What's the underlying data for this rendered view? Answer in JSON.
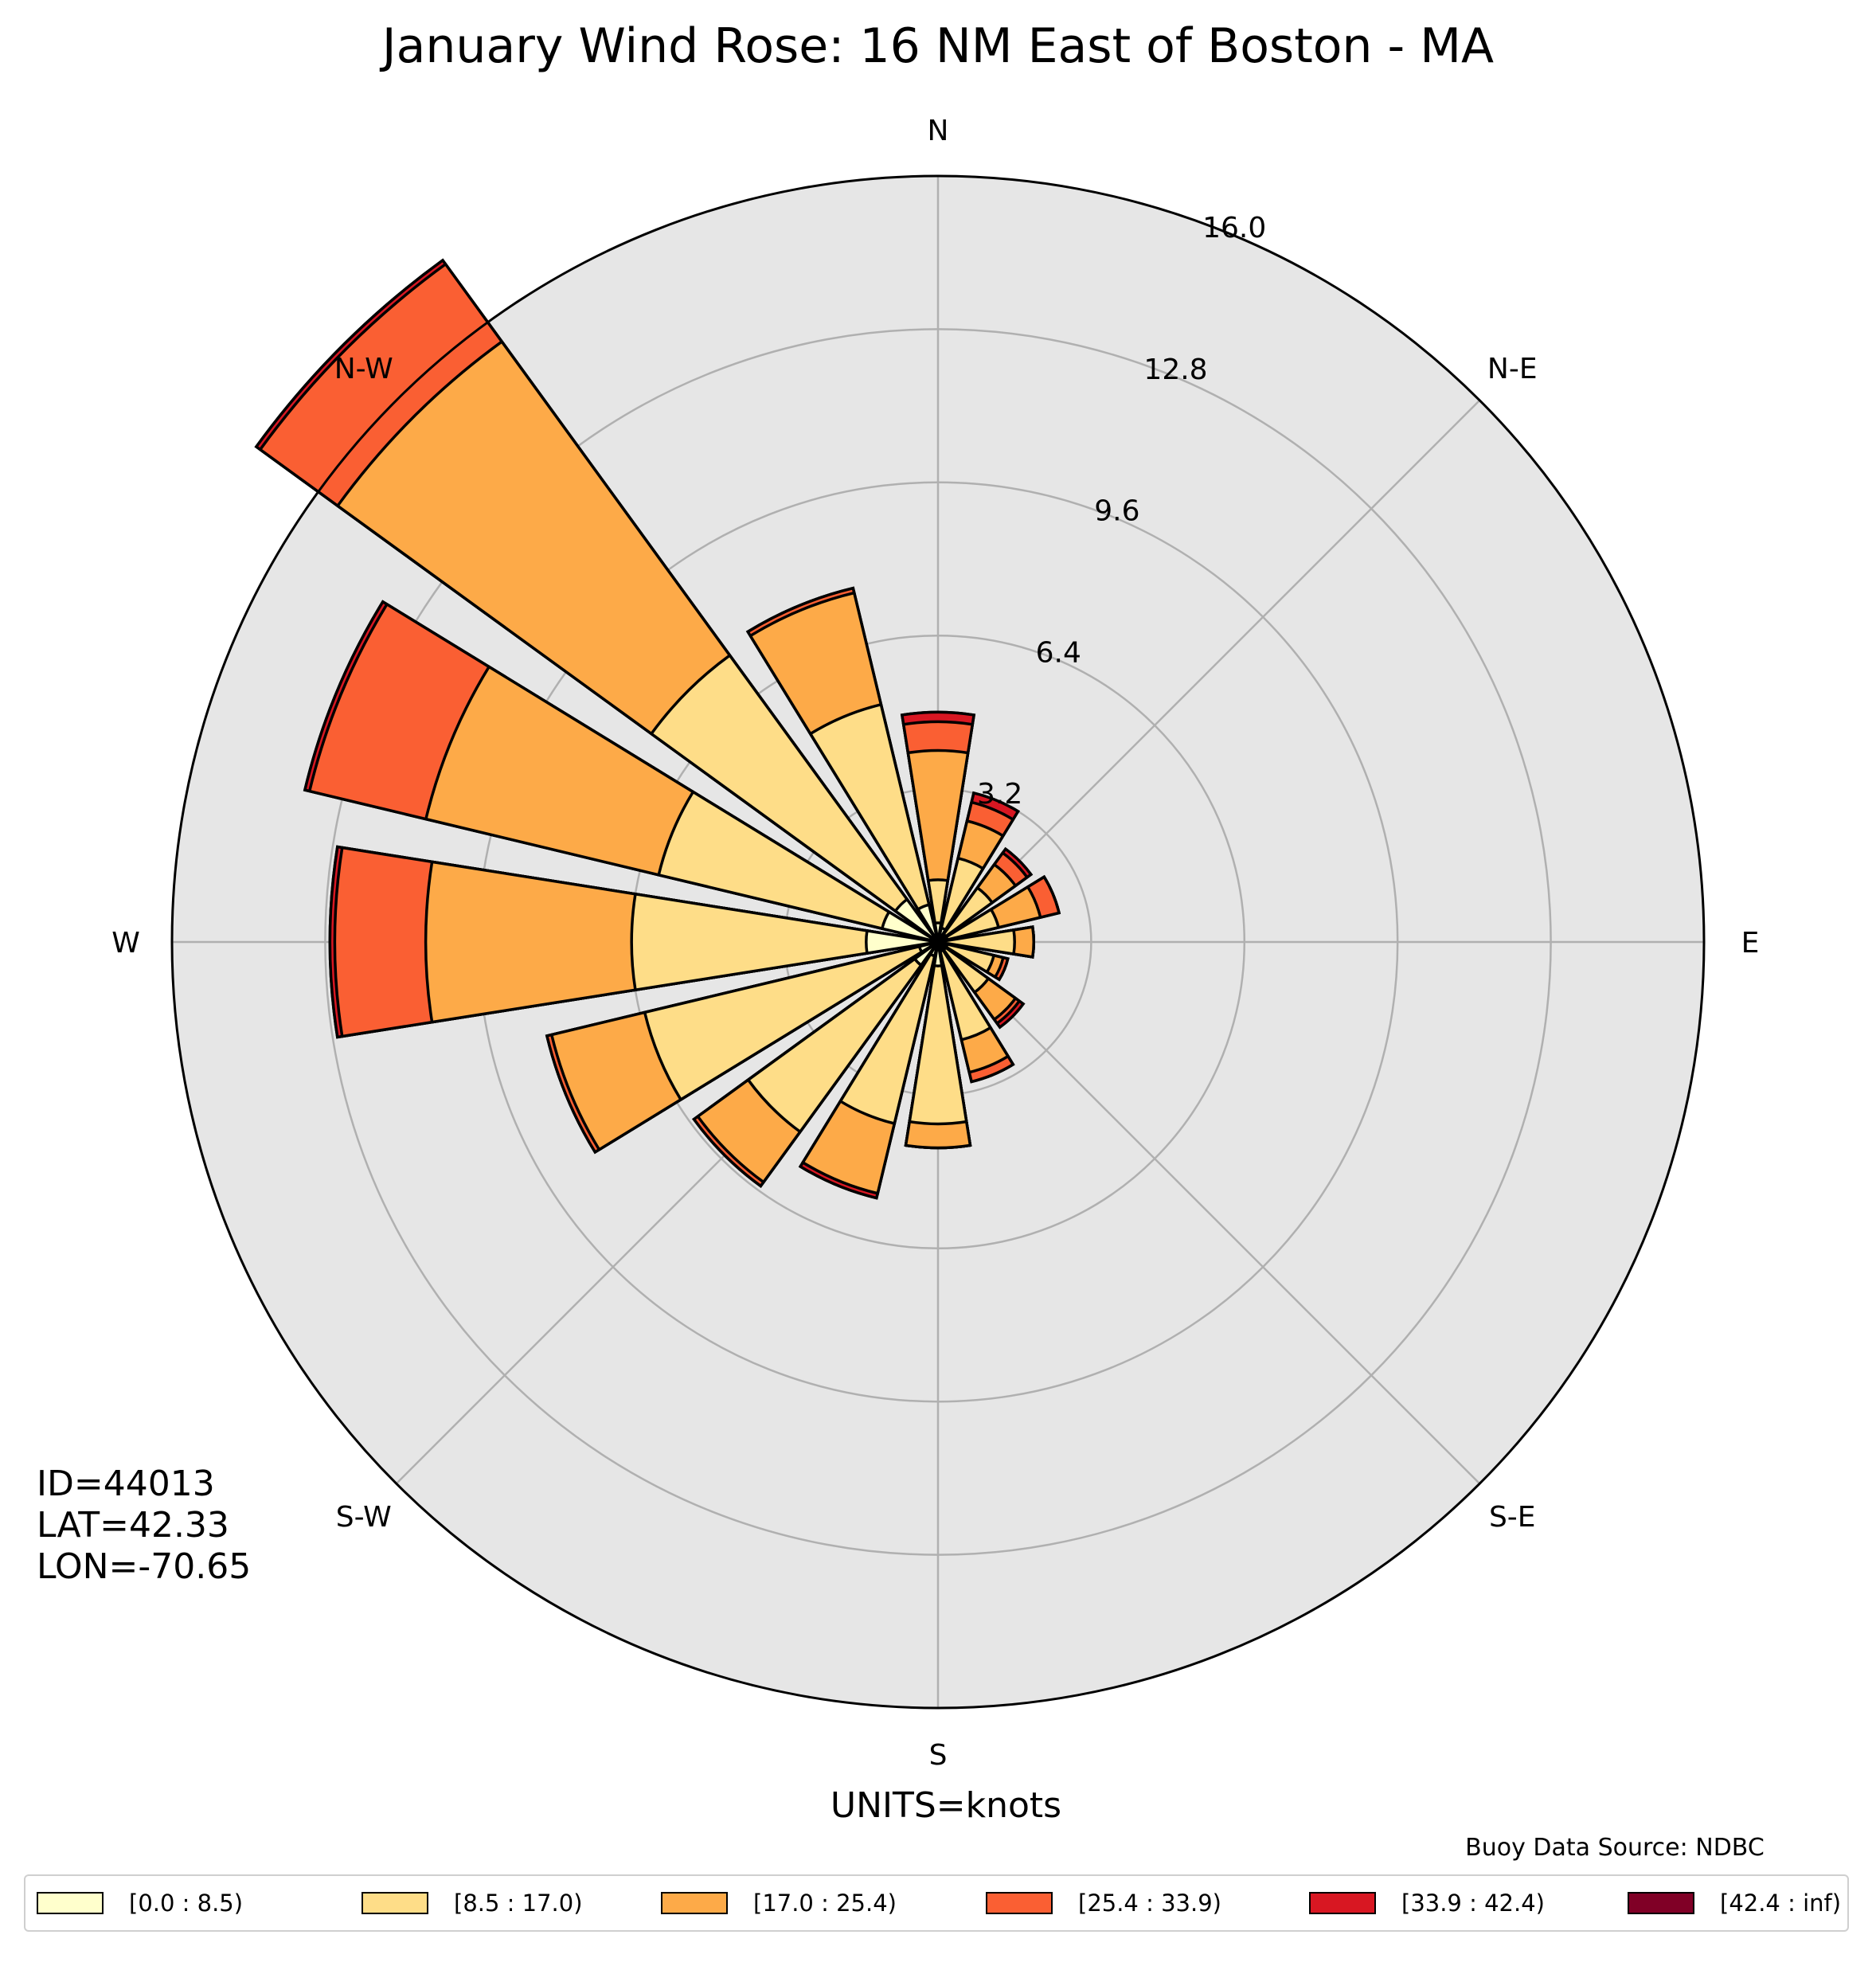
{
  "title": "January Wind Rose: 16 NM East of Boston - MA",
  "units_label": "UNITS=knots",
  "source_label": "Buoy Data Source: NDBC",
  "station": {
    "id": "ID=44013",
    "lat": "LAT=42.33",
    "lon": "LON=-70.65"
  },
  "chart_data": {
    "type": "wind-rose",
    "title": "January Wind Rose: 16 NM East of Boston - MA",
    "direction_labels": [
      "N",
      "N-E",
      "E",
      "S-E",
      "S",
      "S-W",
      "W",
      "N-W"
    ],
    "radial_ticks": [
      3.2,
      6.4,
      9.6,
      12.8,
      16.0
    ],
    "radial_tick_labels": [
      "3.2",
      "6.4",
      "9.6",
      "12.8",
      "16.0"
    ],
    "rmax": 16.0,
    "sectors": [
      "N",
      "NNE",
      "NE",
      "ENE",
      "E",
      "ESE",
      "SE",
      "SSE",
      "S",
      "SSW",
      "SW",
      "WSW",
      "W",
      "WNW",
      "NW",
      "NNW"
    ],
    "sector_angles_deg": [
      0,
      22.5,
      45,
      67.5,
      90,
      112.5,
      135,
      157.5,
      180,
      202.5,
      225,
      247.5,
      270,
      292.5,
      315,
      337.5
    ],
    "bins": [
      {
        "label": "[0.0 : 8.5)",
        "color": "#ffffcc"
      },
      {
        "label": "[8.5 : 17.0)",
        "color": "#fedd88"
      },
      {
        "label": "[17.0 : 25.4)",
        "color": "#fdaa48"
      },
      {
        "label": "[25.4 : 33.9)",
        "color": "#fa5f33"
      },
      {
        "label": "[33.9 : 42.4)",
        "color": "#d81722"
      },
      {
        "label": "[42.4 : inf)",
        "color": "#800026"
      }
    ],
    "cumulative_values": [
      [
        0.4,
        1.3,
        4.0,
        4.6,
        4.8,
        4.8
      ],
      [
        0.3,
        1.8,
        2.6,
        3.0,
        3.2,
        3.2
      ],
      [
        0.2,
        1.4,
        2.0,
        2.3,
        2.4,
        2.4
      ],
      [
        0.2,
        1.3,
        2.2,
        2.6,
        2.6,
        2.6
      ],
      [
        0.1,
        1.6,
        2.0,
        2.0,
        2.0,
        2.0
      ],
      [
        0.2,
        1.2,
        1.4,
        1.5,
        1.5,
        1.5
      ],
      [
        0.2,
        1.3,
        2.0,
        2.1,
        2.2,
        2.2
      ],
      [
        0.2,
        2.1,
        2.8,
        3.0,
        3.0,
        3.0
      ],
      [
        0.5,
        3.8,
        4.3,
        4.3,
        4.3,
        4.3
      ],
      [
        0.3,
        3.9,
        5.4,
        5.4,
        5.5,
        5.5
      ],
      [
        0.6,
        4.9,
        6.2,
        6.3,
        6.3,
        6.3
      ],
      [
        0.4,
        6.3,
        8.3,
        8.4,
        8.4,
        8.4
      ],
      [
        1.5,
        6.4,
        10.7,
        12.6,
        12.7,
        12.7
      ],
      [
        1.2,
        6.0,
        11.0,
        13.5,
        13.6,
        13.6
      ],
      [
        1.1,
        7.4,
        15.5,
        17.5,
        17.6,
        17.6
      ],
      [
        0.8,
        5.1,
        7.5,
        7.6,
        7.6,
        7.6
      ]
    ]
  },
  "legend": [
    {
      "label": "[0.0 : 8.5)",
      "color": "#ffffcc"
    },
    {
      "label": "[8.5 : 17.0)",
      "color": "#fedd88"
    },
    {
      "label": "[17.0 : 25.4)",
      "color": "#fdaa48"
    },
    {
      "label": "[25.4 : 33.9)",
      "color": "#fa5f33"
    },
    {
      "label": "[33.9 : 42.4)",
      "color": "#d81722"
    },
    {
      "label": "[42.4 : inf)",
      "color": "#800026"
    }
  ]
}
